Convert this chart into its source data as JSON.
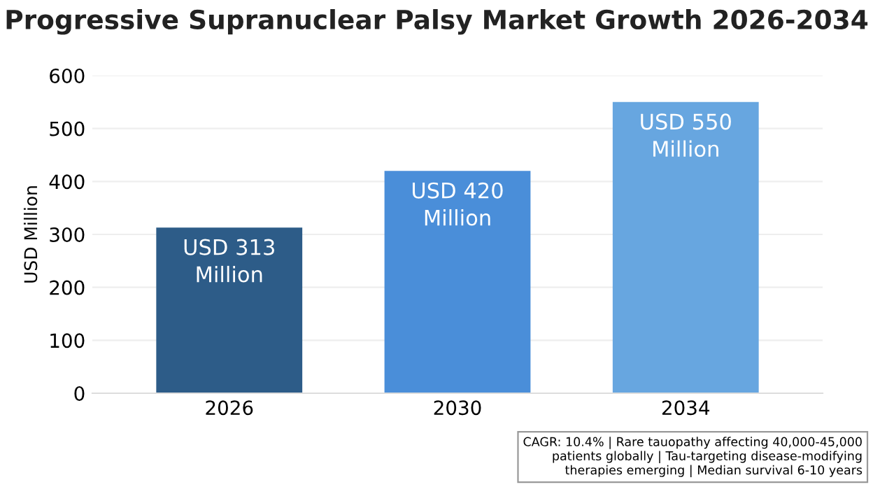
{
  "chart_data": {
    "type": "bar",
    "title": "Progressive Supranuclear Palsy Market Growth 2026-2034",
    "ylabel": "USD Million",
    "categories": [
      "2026",
      "2030",
      "2034"
    ],
    "values": [
      313,
      420,
      550
    ],
    "colors": [
      "#2d5c88",
      "#4a8ed9",
      "#67a6e0"
    ],
    "value_labels": [
      "USD 313\nMillion",
      "USD 420\nMillion",
      "USD 550\nMillion"
    ],
    "ylim": [
      0,
      600
    ],
    "yticks": [
      0,
      100,
      200,
      300,
      400,
      500,
      600
    ],
    "grid": "y",
    "legend": false,
    "annotations": [
      "CAGR: 10.4% | Rare tauopathy affecting 40,000-45,000\npatients globally | Tau-targeting disease-modifying\ntherapies emerging | Median survival 6-10 years"
    ]
  }
}
